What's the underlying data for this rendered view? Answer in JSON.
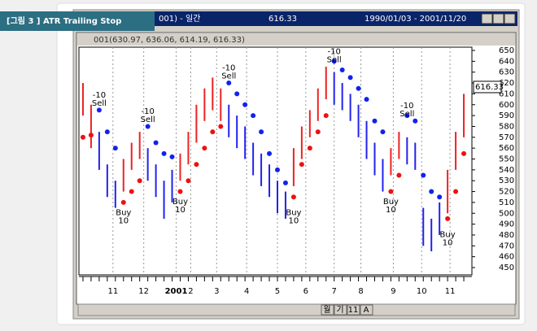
{
  "caption": "[그림 3 ] ATR Trailing Stop",
  "window": {
    "title": "001) - 일간",
    "price": "616.33",
    "range": "1990/01/03 - 2001/11/20",
    "subtitle": "001(630.97, 636.06, 614.19, 616.33)",
    "buttons": [
      "월",
      "기",
      "11",
      "A"
    ]
  },
  "chart_data": {
    "type": "bar-stop",
    "xlim": [
      -0.5,
      48
    ],
    "ylim": [
      450,
      650
    ],
    "yticks": [
      450,
      460,
      470,
      480,
      490,
      500,
      510,
      520,
      530,
      540,
      550,
      560,
      570,
      580,
      590,
      600,
      610,
      620,
      630,
      640,
      650
    ],
    "xticks": [
      {
        "value": 3.7,
        "label": "11"
      },
      {
        "value": 7.5,
        "label": "12"
      },
      {
        "value": 11.5,
        "label": "2001"
      },
      {
        "value": 13.3,
        "label": "2"
      },
      {
        "value": 16.5,
        "label": "3"
      },
      {
        "value": 20.2,
        "label": "4"
      },
      {
        "value": 24,
        "label": "5"
      },
      {
        "value": 27.5,
        "label": "6"
      },
      {
        "value": 31,
        "label": "7"
      },
      {
        "value": 34.3,
        "label": "8"
      },
      {
        "value": 38.3,
        "label": "9"
      },
      {
        "value": 41.8,
        "label": "10"
      },
      {
        "value": 45.3,
        "label": "11"
      }
    ],
    "last": {
      "value": 616.33,
      "label": "616.33"
    },
    "high": [
      620,
      600,
      575,
      545,
      530,
      550,
      565,
      575,
      560,
      545,
      530,
      540,
      555,
      575,
      600,
      615,
      625,
      615,
      600,
      590,
      580,
      565,
      555,
      545,
      530,
      520,
      560,
      580,
      595,
      615,
      635,
      630,
      620,
      610,
      600,
      585,
      565,
      550,
      560,
      575,
      570,
      565,
      505,
      495,
      510,
      540,
      575,
      610
    ],
    "low": [
      590,
      560,
      540,
      515,
      505,
      520,
      540,
      550,
      530,
      515,
      495,
      510,
      530,
      545,
      565,
      585,
      595,
      585,
      570,
      560,
      550,
      535,
      525,
      515,
      500,
      495,
      525,
      550,
      570,
      585,
      605,
      600,
      595,
      585,
      570,
      550,
      535,
      520,
      535,
      550,
      545,
      540,
      470,
      465,
      480,
      500,
      540,
      570
    ],
    "series": [
      {
        "name": "Long Stop",
        "color": "#ee1111",
        "values": [
          570,
          572,
          null,
          null,
          null,
          510,
          520,
          530,
          null,
          null,
          null,
          null,
          520,
          530,
          545,
          560,
          575,
          580,
          null,
          null,
          null,
          null,
          null,
          null,
          null,
          null,
          515,
          545,
          560,
          575,
          590,
          null,
          null,
          null,
          null,
          null,
          null,
          null,
          520,
          535,
          null,
          null,
          null,
          null,
          null,
          495,
          520,
          555
        ]
      },
      {
        "name": "Short Stop",
        "color": "#1122ee",
        "values": [
          null,
          null,
          595,
          575,
          560,
          null,
          null,
          null,
          580,
          565,
          555,
          552,
          null,
          null,
          null,
          null,
          null,
          null,
          620,
          610,
          600,
          590,
          575,
          555,
          540,
          528,
          null,
          null,
          null,
          null,
          null,
          640,
          632,
          625,
          615,
          605,
          585,
          575,
          null,
          null,
          590,
          585,
          535,
          520,
          515,
          null,
          null,
          null
        ]
      }
    ],
    "signals": [
      {
        "text": "Sell",
        "qty": -10,
        "x": 2,
        "y": 600
      },
      {
        "text": "Buy",
        "qty": 10,
        "x": 5,
        "y": 505
      },
      {
        "text": "Sell",
        "qty": -10,
        "x": 8,
        "y": 585
      },
      {
        "text": "Buy",
        "qty": 10,
        "x": 12,
        "y": 515
      },
      {
        "text": "Sell",
        "qty": -10,
        "x": 18,
        "y": 625
      },
      {
        "text": "Buy",
        "qty": 10,
        "x": 26,
        "y": 505
      },
      {
        "text": "Sell",
        "qty": -10,
        "x": 31,
        "y": 640
      },
      {
        "text": "Buy",
        "qty": 10,
        "x": 38,
        "y": 515
      },
      {
        "text": "Sell",
        "qty": -10,
        "x": 40,
        "y": 590
      },
      {
        "text": "Buy",
        "qty": 10,
        "x": 45,
        "y": 485
      }
    ]
  }
}
